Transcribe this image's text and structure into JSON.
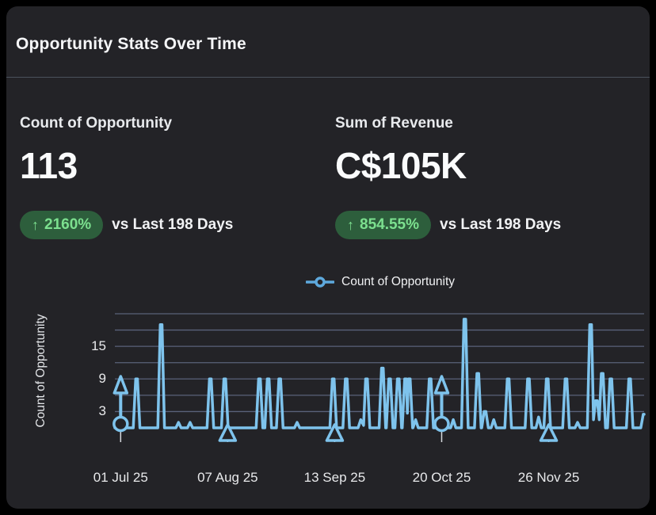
{
  "card": {
    "title": "Opportunity Stats Over Time"
  },
  "kpis": [
    {
      "label": "Count of Opportunity",
      "value": "113",
      "delta_direction": "up",
      "delta_arrow": "↑",
      "delta": "2160%",
      "comparison": "vs Last 198 Days"
    },
    {
      "label": "Sum of Revenue",
      "value": "C$105K",
      "delta_direction": "up",
      "delta_arrow": "↑",
      "delta": "854.55%",
      "comparison": "vs Last 198 Days"
    }
  ],
  "colors": {
    "page_bg": "#000000",
    "card_bg": "#232327",
    "badge_bg": "#2d5e3c",
    "badge_text": "#7ce08f",
    "line": "#7ec3ec",
    "legend_marker": "#5ea9dd",
    "gridline": "#5a627a",
    "axis_tick": "#d6d9de",
    "tick_text": "#e8e9eb"
  },
  "chart_data": {
    "type": "line",
    "series_name": "Count of Opportunity",
    "ylabel": "Count of Opportunity",
    "ylim": [
      0,
      21
    ],
    "grid": true,
    "grid_interval": 3,
    "ytick_labels": [
      3,
      9,
      15
    ],
    "x_axis": {
      "unit": "day_index_from_chart_left_edge",
      "span_days": 183,
      "ticks": [
        {
          "day": 2,
          "label": "01 Jul 25"
        },
        {
          "day": 39,
          "label": "07 Aug 25"
        },
        {
          "day": 76,
          "label": "13 Sep 25"
        },
        {
          "day": 113,
          "label": "20 Oct 25"
        },
        {
          "day": 150,
          "label": "26 Nov 25"
        }
      ]
    },
    "baseline_value": 0,
    "spikes": [
      [
        7.5,
        9
      ],
      [
        16,
        19
      ],
      [
        22,
        1
      ],
      [
        26,
        1
      ],
      [
        33,
        9
      ],
      [
        38,
        9
      ],
      [
        50,
        9
      ],
      [
        53,
        9
      ],
      [
        57,
        9
      ],
      [
        63,
        1
      ],
      [
        75.5,
        9
      ],
      [
        80,
        9
      ],
      [
        85,
        1.5
      ],
      [
        87,
        9
      ],
      [
        92.5,
        11
      ],
      [
        95,
        9
      ],
      [
        98,
        9
      ],
      [
        100.5,
        9
      ],
      [
        101.8,
        9
      ],
      [
        104,
        1.5
      ],
      [
        109,
        9
      ],
      [
        117,
        1.5
      ],
      [
        121,
        20
      ],
      [
        125.5,
        10
      ],
      [
        128,
        3
      ],
      [
        131,
        1.5
      ],
      [
        136,
        9
      ],
      [
        143,
        9
      ],
      [
        146.5,
        2
      ],
      [
        149.5,
        9
      ],
      [
        156,
        9
      ],
      [
        160,
        1
      ],
      [
        164.5,
        19
      ],
      [
        166.5,
        5
      ],
      [
        168.5,
        10
      ],
      [
        171.5,
        9
      ],
      [
        178,
        9
      ],
      [
        183,
        2.5
      ]
    ],
    "annotations": {
      "arrow_up_marker_days": [
        2,
        113
      ],
      "triangle_marker_days": [
        39,
        76,
        150
      ]
    },
    "legend": {
      "position": "top-center",
      "entries": [
        "Count of Opportunity"
      ]
    }
  }
}
